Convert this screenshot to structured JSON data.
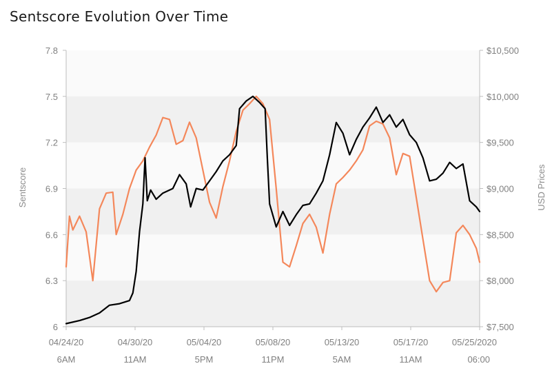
{
  "title": "Sentscore Evolution Over Time",
  "chart_data": {
    "type": "line",
    "title": "Sentscore Evolution Over Time",
    "grid": "alternating horizontal bands",
    "legend": "none",
    "x_ticks": [
      {
        "date": "04/24/20",
        "time": "6AM"
      },
      {
        "date": "04/30/20",
        "time": "11AM"
      },
      {
        "date": "05/04/20",
        "time": "5PM"
      },
      {
        "date": "05/08/20",
        "time": "11PM"
      },
      {
        "date": "05/13/20",
        "time": "5AM"
      },
      {
        "date": "05/17/20",
        "time": "11AM"
      },
      {
        "date": "05/25/2020",
        "time": "06:00"
      }
    ],
    "x_range": [
      "2020-04-24 06:00",
      "2020-05-25 06:00"
    ],
    "y_left": {
      "label": "Sentscore",
      "range": [
        6.0,
        7.8
      ],
      "ticks": [
        "6",
        "6.3",
        "6.6",
        "6.9",
        "7.2",
        "7.5",
        "7.8"
      ],
      "color": "#000000"
    },
    "y_right": {
      "label": "USD Prices",
      "range": [
        7500,
        10500
      ],
      "ticks": [
        "$7,500",
        "$8,000",
        "$8,500",
        "$9,000",
        "$9,500",
        "$10,000",
        "$10,500"
      ],
      "color": "#f4875a"
    },
    "series": [
      {
        "axis": "left",
        "color": "#000000",
        "points": [
          [
            "2020-04-24 06:00",
            6.02
          ],
          [
            "2020-04-25 06:00",
            6.04
          ],
          [
            "2020-04-26 00:00",
            6.06
          ],
          [
            "2020-04-26 18:00",
            6.09
          ],
          [
            "2020-04-27 12:00",
            6.14
          ],
          [
            "2020-04-28 06:00",
            6.15
          ],
          [
            "2020-04-29 00:00",
            6.17
          ],
          [
            "2020-04-29 06:00",
            6.22
          ],
          [
            "2020-04-29 12:00",
            6.36
          ],
          [
            "2020-04-29 18:00",
            6.62
          ],
          [
            "2020-04-30 00:00",
            6.8
          ],
          [
            "2020-04-30 04:00",
            7.1
          ],
          [
            "2020-04-30 08:00",
            6.82
          ],
          [
            "2020-04-30 14:00",
            6.89
          ],
          [
            "2020-05-01 00:00",
            6.83
          ],
          [
            "2020-05-01 12:00",
            6.87
          ],
          [
            "2020-05-02 06:00",
            6.9
          ],
          [
            "2020-05-02 18:00",
            6.99
          ],
          [
            "2020-05-03 06:00",
            6.93
          ],
          [
            "2020-05-03 14:00",
            6.78
          ],
          [
            "2020-05-04 00:00",
            6.9
          ],
          [
            "2020-05-04 12:00",
            6.89
          ],
          [
            "2020-05-05 00:00",
            6.95
          ],
          [
            "2020-05-05 12:00",
            7.01
          ],
          [
            "2020-05-06 00:00",
            7.08
          ],
          [
            "2020-05-06 12:00",
            7.12
          ],
          [
            "2020-05-07 00:00",
            7.18
          ],
          [
            "2020-05-07 06:00",
            7.42
          ],
          [
            "2020-05-07 18:00",
            7.47
          ],
          [
            "2020-05-08 06:00",
            7.5
          ],
          [
            "2020-05-08 18:00",
            7.46
          ],
          [
            "2020-05-09 04:00",
            7.42
          ],
          [
            "2020-05-09 08:00",
            7.1
          ],
          [
            "2020-05-09 12:00",
            6.8
          ],
          [
            "2020-05-10 00:00",
            6.65
          ],
          [
            "2020-05-10 12:00",
            6.75
          ],
          [
            "2020-05-11 00:00",
            6.66
          ],
          [
            "2020-05-11 12:00",
            6.73
          ],
          [
            "2020-05-12 00:00",
            6.79
          ],
          [
            "2020-05-12 12:00",
            6.8
          ],
          [
            "2020-05-13 00:00",
            6.87
          ],
          [
            "2020-05-13 12:00",
            6.95
          ],
          [
            "2020-05-14 00:00",
            7.12
          ],
          [
            "2020-05-14 12:00",
            7.33
          ],
          [
            "2020-05-15 00:00",
            7.26
          ],
          [
            "2020-05-15 12:00",
            7.12
          ],
          [
            "2020-05-16 00:00",
            7.22
          ],
          [
            "2020-05-16 12:00",
            7.3
          ],
          [
            "2020-05-17 00:00",
            7.36
          ],
          [
            "2020-05-17 12:00",
            7.43
          ],
          [
            "2020-05-18 00:00",
            7.33
          ],
          [
            "2020-05-18 12:00",
            7.38
          ],
          [
            "2020-05-19 00:00",
            7.3
          ],
          [
            "2020-05-19 12:00",
            7.35
          ],
          [
            "2020-05-20 00:00",
            7.25
          ],
          [
            "2020-05-20 12:00",
            7.2
          ],
          [
            "2020-05-21 00:00",
            7.1
          ],
          [
            "2020-05-21 12:00",
            6.95
          ],
          [
            "2020-05-22 00:00",
            6.96
          ],
          [
            "2020-05-22 12:00",
            7.0
          ],
          [
            "2020-05-23 00:00",
            7.07
          ],
          [
            "2020-05-23 12:00",
            7.03
          ],
          [
            "2020-05-24 00:00",
            7.06
          ],
          [
            "2020-05-24 12:00",
            6.82
          ],
          [
            "2020-05-25 00:00",
            6.78
          ],
          [
            "2020-05-25 06:00",
            6.75
          ]
        ]
      },
      {
        "axis": "right",
        "color": "#f4875a",
        "points": [
          [
            "2020-04-24 06:00",
            8.15
          ],
          [
            "2020-04-24 12:00",
            8.7
          ],
          [
            "2020-04-24 18:00",
            8.55
          ],
          [
            "2020-04-25 06:00",
            8.7
          ],
          [
            "2020-04-25 18:00",
            8.53
          ],
          [
            "2020-04-26 06:00",
            8.0
          ],
          [
            "2020-04-26 18:00",
            8.78
          ],
          [
            "2020-04-27 06:00",
            8.95
          ],
          [
            "2020-04-27 18:00",
            8.96
          ],
          [
            "2020-04-28 00:00",
            8.5
          ],
          [
            "2020-04-28 12:00",
            8.72
          ],
          [
            "2020-04-29 00:00",
            9.0
          ],
          [
            "2020-04-29 12:00",
            9.2
          ],
          [
            "2020-04-30 00:00",
            9.3
          ],
          [
            "2020-04-30 12:00",
            9.45
          ],
          [
            "2020-05-01 00:00",
            9.58
          ],
          [
            "2020-05-01 12:00",
            9.77
          ],
          [
            "2020-05-02 00:00",
            9.75
          ],
          [
            "2020-05-02 12:00",
            9.48
          ],
          [
            "2020-05-03 00:00",
            9.52
          ],
          [
            "2020-05-03 12:00",
            9.72
          ],
          [
            "2020-05-04 00:00",
            9.55
          ],
          [
            "2020-05-04 12:00",
            9.2
          ],
          [
            "2020-05-05 00:00",
            8.85
          ],
          [
            "2020-05-05 12:00",
            8.68
          ],
          [
            "2020-05-06 00:00",
            9.02
          ],
          [
            "2020-05-06 12:00",
            9.3
          ],
          [
            "2020-05-07 00:00",
            9.62
          ],
          [
            "2020-05-07 12:00",
            9.85
          ],
          [
            "2020-05-08 00:00",
            9.92
          ],
          [
            "2020-05-08 12:00",
            10.0
          ],
          [
            "2020-05-09 00:00",
            9.92
          ],
          [
            "2020-05-09 12:00",
            9.75
          ],
          [
            "2020-05-10 00:00",
            9.0
          ],
          [
            "2020-05-10 12:00",
            8.2
          ],
          [
            "2020-05-11 00:00",
            8.15
          ],
          [
            "2020-05-11 12:00",
            8.38
          ],
          [
            "2020-05-12 00:00",
            8.62
          ],
          [
            "2020-05-12 12:00",
            8.72
          ],
          [
            "2020-05-13 00:00",
            8.58
          ],
          [
            "2020-05-13 12:00",
            8.3
          ],
          [
            "2020-05-14 00:00",
            8.72
          ],
          [
            "2020-05-14 12:00",
            9.05
          ],
          [
            "2020-05-15 00:00",
            9.12
          ],
          [
            "2020-05-15 12:00",
            9.2
          ],
          [
            "2020-05-16 00:00",
            9.3
          ],
          [
            "2020-05-16 12:00",
            9.42
          ],
          [
            "2020-05-17 00:00",
            9.68
          ],
          [
            "2020-05-17 12:00",
            9.73
          ],
          [
            "2020-05-18 00:00",
            9.7
          ],
          [
            "2020-05-18 12:00",
            9.55
          ],
          [
            "2020-05-19 00:00",
            9.15
          ],
          [
            "2020-05-19 12:00",
            9.38
          ],
          [
            "2020-05-20 00:00",
            9.35
          ],
          [
            "2020-05-20 12:00",
            8.9
          ],
          [
            "2020-05-21 00:00",
            8.45
          ],
          [
            "2020-05-21 12:00",
            8.0
          ],
          [
            "2020-05-22 00:00",
            7.88
          ],
          [
            "2020-05-22 12:00",
            7.98
          ],
          [
            "2020-05-23 00:00",
            8.0
          ],
          [
            "2020-05-23 12:00",
            8.52
          ],
          [
            "2020-05-24 00:00",
            8.6
          ],
          [
            "2020-05-24 12:00",
            8.5
          ],
          [
            "2020-05-25 00:00",
            8.35
          ],
          [
            "2020-05-25 06:00",
            8.2
          ]
        ]
      }
    ]
  }
}
